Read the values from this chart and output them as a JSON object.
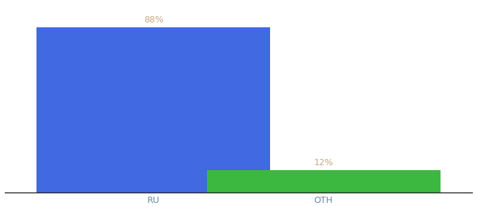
{
  "categories": [
    "RU",
    "OTH"
  ],
  "values": [
    88,
    12
  ],
  "bar_colors": [
    "#4169e1",
    "#3cb840"
  ],
  "label_color": "#c8a882",
  "label_fontsize": 9,
  "tick_fontsize": 9,
  "tick_color": "#6688aa",
  "background_color": "#ffffff",
  "ylim": [
    0,
    100
  ],
  "bar_width": 0.55,
  "x_positions": [
    0.35,
    0.75
  ],
  "xlim": [
    0.0,
    1.1
  ],
  "value_labels": [
    "88%",
    "12%"
  ]
}
